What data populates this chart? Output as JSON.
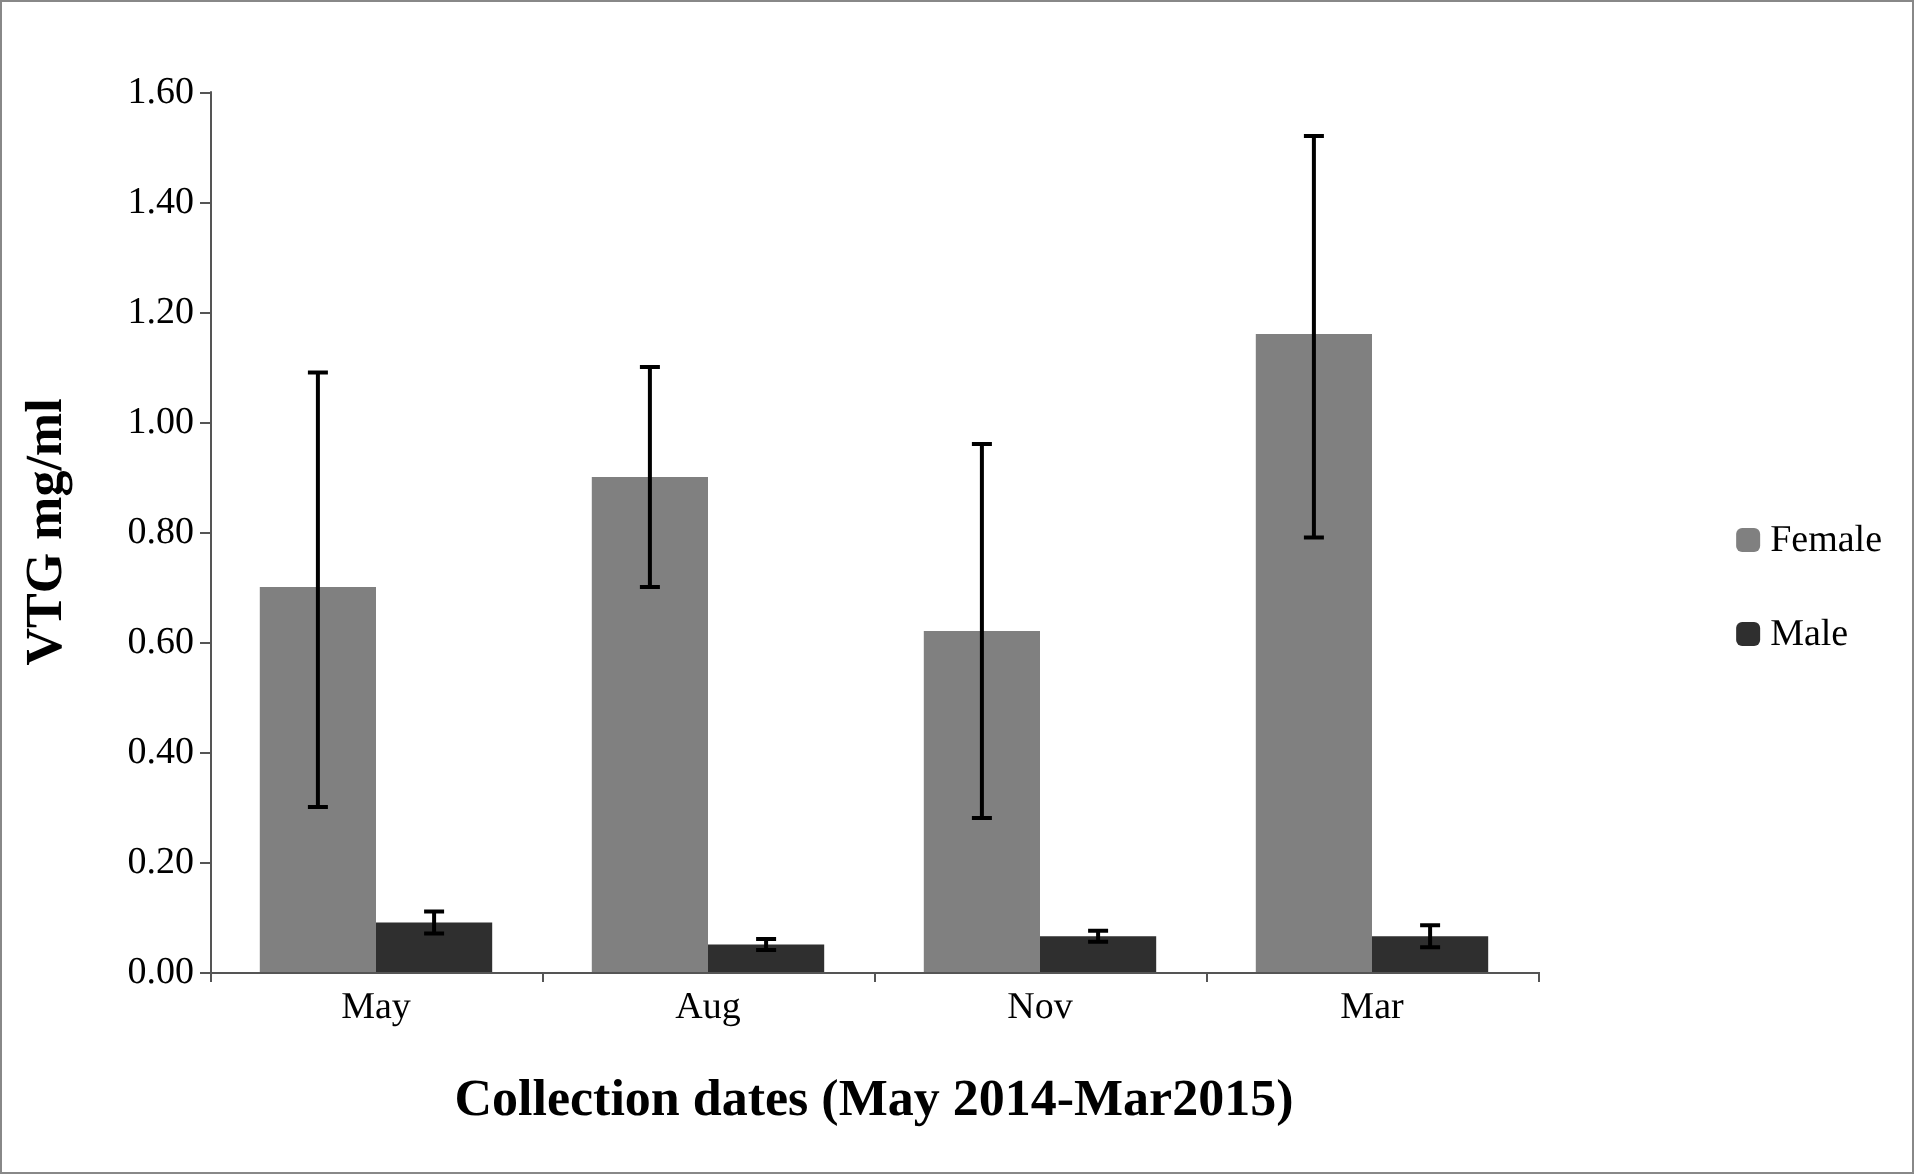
{
  "chart_data": {
    "type": "bar",
    "xlabel": "Collection dates (May 2014-Mar2015)",
    "ylabel": "VTG mg/ml",
    "categories": [
      "May",
      "Aug",
      "Nov",
      "Mar"
    ],
    "series": [
      {
        "name": "Female",
        "color": "#808080",
        "values": [
          0.7,
          0.9,
          0.62,
          1.16
        ],
        "errors": [
          [
            0.3,
            1.09
          ],
          [
            0.7,
            1.1
          ],
          [
            0.28,
            0.96
          ],
          [
            0.79,
            1.52
          ]
        ]
      },
      {
        "name": "Male",
        "color": "#2f2f2f",
        "values": [
          0.09,
          0.05,
          0.065,
          0.065
        ],
        "errors": [
          [
            0.07,
            0.11
          ],
          [
            0.04,
            0.06
          ],
          [
            0.055,
            0.075
          ],
          [
            0.045,
            0.085
          ]
        ]
      }
    ],
    "ylim": [
      0,
      1.6
    ],
    "yticks": [
      {
        "value": 0,
        "label": "0.00"
      },
      {
        "value": 0.2,
        "label": "0.20"
      },
      {
        "value": 0.4,
        "label": "0.40"
      },
      {
        "value": 0.6,
        "label": "0.60"
      },
      {
        "value": 0.8,
        "label": "0.80"
      },
      {
        "value": 1.0,
        "label": "1.00"
      },
      {
        "value": 1.2,
        "label": "1.20"
      },
      {
        "value": 1.4,
        "label": "1.40"
      },
      {
        "value": 1.6,
        "label": "1.60"
      }
    ],
    "grid": false,
    "legend": "right"
  }
}
